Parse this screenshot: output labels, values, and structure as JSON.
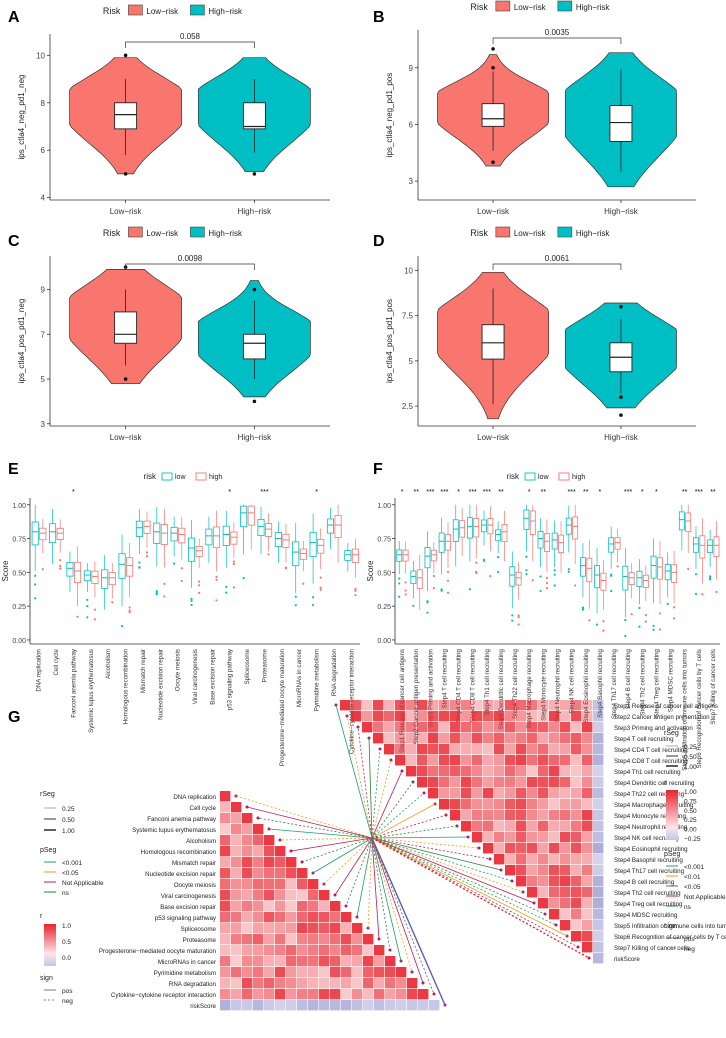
{
  "colors": {
    "low": "#F8766D",
    "high": "#00BFC4",
    "red": "#E8242E",
    "blue": "#5D5CB6",
    "grid": "#d9d9d9"
  },
  "chart_data": [
    {
      "id": "A",
      "type": "violin",
      "title": "",
      "legend_title": "Risk",
      "legend": [
        "Low−risk",
        "High−risk"
      ],
      "legend_position": "top",
      "categories": [
        "Low−risk",
        "High−risk"
      ],
      "ylabel": "ips_ctla4_neg_pd1_neg",
      "xlabel": "",
      "yticks": [
        4,
        6,
        8,
        10
      ],
      "ylim": [
        3.9,
        10.9
      ],
      "pvalue": "0.058",
      "series": [
        {
          "name": "Low−risk",
          "q1": 6.9,
          "median": 7.5,
          "q3": 8,
          "whisker_low": 5.8,
          "whisker_high": 9,
          "outliers": [
            10,
            5
          ]
        },
        {
          "name": "High−risk",
          "q1": 6.9,
          "median": 7,
          "q3": 8,
          "whisker_low": 5.9,
          "whisker_high": 9,
          "outliers": [
            5
          ]
        }
      ]
    },
    {
      "id": "B",
      "type": "violin",
      "legend_title": "Risk",
      "legend": [
        "Low−risk",
        "High−risk"
      ],
      "legend_position": "top",
      "categories": [
        "Low−risk",
        "High−risk"
      ],
      "ylabel": "ips_ctla4_neg_pd1_pos",
      "xlabel": "",
      "yticks": [
        3,
        6,
        9
      ],
      "ylim": [
        2,
        11
      ],
      "pvalue": "0.0035",
      "series": [
        {
          "name": "Low−risk",
          "q1": 5.9,
          "median": 6.3,
          "q3": 7.1,
          "whisker_low": 4.6,
          "whisker_high": 8.8,
          "outliers": [
            10,
            9,
            4
          ]
        },
        {
          "name": "High−risk",
          "q1": 5.1,
          "median": 6.1,
          "q3": 7.0,
          "whisker_low": 3.5,
          "whisker_high": 8.9,
          "outliers": []
        }
      ]
    },
    {
      "id": "C",
      "type": "violin",
      "legend_title": "Risk",
      "legend": [
        "Low−risk",
        "High−risk"
      ],
      "legend_position": "top",
      "categories": [
        "Low−risk",
        "High−risk"
      ],
      "ylabel": "ips_ctla4_pos_pd1_neg",
      "xlabel": "",
      "yticks": [
        3,
        5,
        7,
        9
      ],
      "ylim": [
        2.9,
        10.5
      ],
      "pvalue": "0.0098",
      "series": [
        {
          "name": "Low−risk",
          "q1": 6.6,
          "median": 7,
          "q3": 8,
          "whisker_low": 5.6,
          "whisker_high": 9,
          "outliers": [
            10,
            5
          ]
        },
        {
          "name": "High−risk",
          "q1": 5.9,
          "median": 6.6,
          "q3": 7,
          "whisker_low": 5,
          "whisker_high": 8.5,
          "outliers": [
            9,
            4
          ]
        }
      ]
    },
    {
      "id": "D",
      "type": "violin",
      "legend_title": "Risk",
      "legend": [
        "Low−risk",
        "High−risk"
      ],
      "legend_position": "top",
      "categories": [
        "Low−risk",
        "High−risk"
      ],
      "ylabel": "ips_ctla4_pos_pd1_pos",
      "xlabel": "",
      "yticks": [
        2.5,
        5.0,
        7.5,
        10.0
      ],
      "ylim": [
        1.4,
        10.8
      ],
      "pvalue": "0.0061",
      "series": [
        {
          "name": "Low−risk",
          "q1": 5.1,
          "median": 6,
          "q3": 7,
          "whisker_low": 2.6,
          "whisker_high": 9,
          "outliers": []
        },
        {
          "name": "High−risk",
          "q1": 4.4,
          "median": 5.2,
          "q3": 6,
          "whisker_low": 3.2,
          "whisker_high": 7.3,
          "outliers": [
            8,
            3,
            2
          ]
        }
      ]
    },
    {
      "id": "E",
      "type": "box",
      "legend_title": "risk",
      "legend": [
        "low",
        "high"
      ],
      "ylabel": "Score",
      "ylim": [
        -0.03,
        1.05
      ],
      "yticks": [
        "0.00",
        "0.25",
        "0.50",
        "0.75",
        "1.00"
      ],
      "categories": [
        "DNA replication",
        "Cell cycle",
        "Fanconi anemia pathway",
        "Systemic lupus erythematosus",
        "Alcoholism",
        "Homologous recombination",
        "Mismatch repair",
        "Nucleotide excision repair",
        "Oocyte meiosis",
        "Viral carcinogenesis",
        "Base excision repair",
        "p53 signaling pathway",
        "Spliceosome",
        "Proteasome",
        "Progesterone−mediated oocyte maturation",
        "MicroRNAs in cancer",
        "Pyrimidine metabolism",
        "RNA degradation",
        "Cytokine−cytokine receptor interaction"
      ],
      "significance": [
        "",
        "",
        "*",
        "",
        "",
        "",
        "",
        "",
        "",
        "",
        "",
        "*",
        "",
        "***",
        "",
        "",
        "*",
        "",
        ""
      ],
      "low_median": [
        0.8,
        0.8,
        0.53,
        0.48,
        0.46,
        0.56,
        0.83,
        0.8,
        0.79,
        0.68,
        0.77,
        0.78,
        0.94,
        0.84,
        0.75,
        0.65,
        0.72,
        0.85,
        0.63
      ],
      "high_median": [
        0.79,
        0.79,
        0.51,
        0.47,
        0.46,
        0.55,
        0.84,
        0.79,
        0.78,
        0.66,
        0.77,
        0.76,
        0.94,
        0.82,
        0.74,
        0.64,
        0.7,
        0.85,
        0.63
      ]
    },
    {
      "id": "F",
      "type": "box",
      "legend_title": "risk",
      "legend": [
        "low",
        "high"
      ],
      "ylabel": "Score",
      "ylim": [
        -0.03,
        1.05
      ],
      "yticks": [
        "0.00",
        "0.25",
        "0.50",
        "0.75",
        "1.00"
      ],
      "categories": [
        "Step1 Release of cancer cell antigens",
        "Step2 Cancer antigen presentation",
        "Step3 Priming and activation",
        "Step4 T cell recruiting",
        "Step4 CD4 T cell recruiting",
        "Step4 CD8 T cell recruiting",
        "Step4 Th1 cell recruiting",
        "Step4 Dendritic cell recruiting",
        "Step4 Th22 cell recruiting",
        "Step4 Macrophage recruiting",
        "Step4 Monocyte recruiting",
        "Step4 Neutrophil recruiting",
        "Step4 NK cell recruiting",
        "Step4 Eosinophil recruiting",
        "Step4 Basophil recruiting",
        "Step4 Th17 cell recruiting",
        "Step4 B cell recruiting",
        "Step4 Th2 cell recruiting",
        "Step4 Treg cell recruiting",
        "Step4 MDSC recruiting",
        "Step5 Infiltration of immune cells into tumors",
        "Step6 Recognition of cancer cells by T cells",
        "Step7 Killing of cancer cells"
      ],
      "significance": [
        "*",
        "**",
        "***",
        "***",
        "*",
        "***",
        "***",
        "**",
        "",
        "*",
        "**",
        "",
        "***",
        "**",
        "*",
        "",
        "***",
        "*",
        "*",
        "",
        "**",
        "***",
        "**"
      ],
      "low_median": [
        0.63,
        0.47,
        0.62,
        0.73,
        0.82,
        0.84,
        0.85,
        0.78,
        0.48,
        0.9,
        0.75,
        0.74,
        0.85,
        0.55,
        0.48,
        0.71,
        0.47,
        0.46,
        0.55,
        0.51,
        0.89,
        0.71,
        0.7
      ],
      "high_median": [
        0.63,
        0.46,
        0.63,
        0.73,
        0.83,
        0.84,
        0.85,
        0.8,
        0.46,
        0.88,
        0.73,
        0.72,
        0.84,
        0.53,
        0.44,
        0.72,
        0.46,
        0.44,
        0.54,
        0.5,
        0.88,
        0.7,
        0.7
      ]
    },
    {
      "id": "G",
      "type": "heatmap",
      "row_labels": [
        "DNA replication",
        "Cell cycle",
        "Fanconi anemia pathway",
        "Systemic lupus erythematosus",
        "Alcoholism",
        "Homologous recombination",
        "Mismatch repair",
        "Nucleotide excision repair",
        "Oocyte meiosis",
        "Viral carcinogenesis",
        "Base excision repair",
        "p53 signaling pathway",
        "Spliceosome",
        "Proteasome",
        "Progesterone−mediated oocyte maturation",
        "MicroRNAs in cancer",
        "Pyrimidine metabolism",
        "RNA degradation",
        "Cytokine−cytokine receptor interaction",
        "riskScore"
      ],
      "right_labels": [
        "Step1 Release of cancer cell antigens",
        "Step2 Cancer antigen presentation",
        "Step3 Priming and activation",
        "Step4 T cell recruiting",
        "Step4 CD4 T cell recruiting",
        "Step4 CD8 T cell recruiting",
        "Step4 Th1 cell recruiting",
        "Step4 Dendritic cell recruiting",
        "Step4 Th22 cell recruiting",
        "Step4 Macrophage recruiting",
        "Step4 Monocyte recruiting",
        "Step4 Neutrophil recruiting",
        "Step4 NK cell recruiting",
        "Step4 Eosinophil recruiting",
        "Step4 Basophil recruiting",
        "Step4 Th17 cell recruiting",
        "Step4 B cell recruiting",
        "Step4 Th2 cell recruiting",
        "Step4 Treg cell recruiting",
        "Step4 MDSC recruiting",
        "Step5 Infiltration of immune cells into tumors",
        "Step6 Recognition of cancer cells by T cells",
        "Step7 Killing of cancer cells",
        "riskScore"
      ],
      "legend_left": {
        "rseg_title": "rSeg",
        "rseg": [
          "0.25",
          "0.50",
          "1.00"
        ],
        "pseg_title": "pSeg",
        "pseg": [
          "<0.001",
          "<0.05",
          "Not Applicable",
          "ns"
        ],
        "r_title": "r",
        "r": [
          "1.0",
          "0.5",
          "0.0"
        ],
        "sign_title": "sign",
        "sign": [
          "pos",
          "neg"
        ]
      },
      "legend_right": {
        "rseg_title": "rSeg",
        "rseg": [
          "0.25",
          "0.50",
          "1.00"
        ],
        "r_title": "r",
        "r": [
          "1.00",
          "0.75",
          "0.50",
          "0.25",
          "0.00",
          "−0.25"
        ],
        "pseg_title": "pSeg",
        "pseg": [
          "<0.001",
          "<0.01",
          "<0.05",
          "Not Applicable",
          "ns"
        ],
        "sign_title": "sign",
        "sign": [
          "pos",
          "neg"
        ]
      }
    }
  ]
}
